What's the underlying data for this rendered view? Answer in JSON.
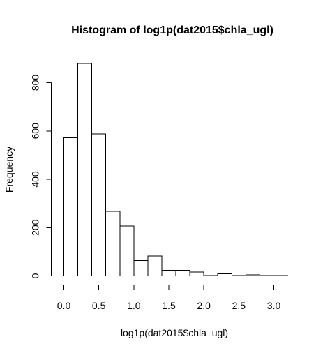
{
  "chart_data": {
    "type": "bar",
    "title": "Histogram of log1p(dat2015$chla_ugl)",
    "xlabel": "log1p(dat2015$chla_ugl)",
    "ylabel": "Frequency",
    "bins": [
      {
        "start": 0.0,
        "end": 0.2,
        "value": 572
      },
      {
        "start": 0.2,
        "end": 0.4,
        "value": 880
      },
      {
        "start": 0.4,
        "end": 0.6,
        "value": 588
      },
      {
        "start": 0.6,
        "end": 0.8,
        "value": 267
      },
      {
        "start": 0.8,
        "end": 1.0,
        "value": 207
      },
      {
        "start": 1.0,
        "end": 1.2,
        "value": 63
      },
      {
        "start": 1.2,
        "end": 1.4,
        "value": 83
      },
      {
        "start": 1.4,
        "end": 1.6,
        "value": 23
      },
      {
        "start": 1.6,
        "end": 1.8,
        "value": 23
      },
      {
        "start": 1.8,
        "end": 2.0,
        "value": 16
      },
      {
        "start": 2.0,
        "end": 2.2,
        "value": 2
      },
      {
        "start": 2.2,
        "end": 2.4,
        "value": 8
      },
      {
        "start": 2.4,
        "end": 2.6,
        "value": 2
      },
      {
        "start": 2.6,
        "end": 2.8,
        "value": 5
      },
      {
        "start": 2.8,
        "end": 3.0,
        "value": 1
      },
      {
        "start": 3.0,
        "end": 3.2,
        "value": 1
      }
    ],
    "xticks": [
      0.0,
      0.5,
      1.0,
      1.5,
      2.0,
      2.5,
      3.0
    ],
    "xtick_labels": [
      "0.0",
      "0.5",
      "1.0",
      "1.5",
      "2.0",
      "2.5",
      "3.0"
    ],
    "yticks": [
      0,
      200,
      400,
      600,
      800
    ],
    "ytick_labels": [
      "0",
      "200",
      "400",
      "600",
      "800"
    ],
    "xlim": [
      0.0,
      3.2
    ],
    "ylim": [
      0,
      880
    ],
    "grid": false,
    "legend": "none",
    "colors": {
      "bar_fill": "#ffffff",
      "bar_stroke": "#000000",
      "background": "#ffffff"
    }
  }
}
